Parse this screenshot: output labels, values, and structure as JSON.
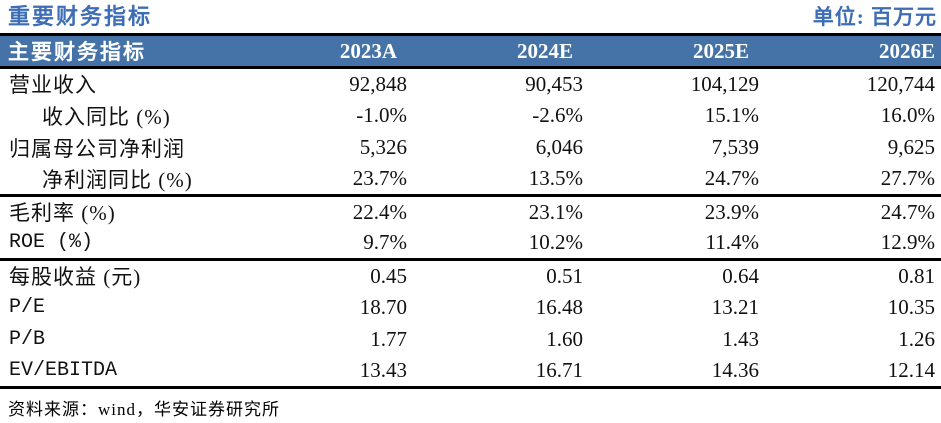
{
  "page": {
    "title": "重要财务指标",
    "unit_label": "单位: 百万元"
  },
  "colors": {
    "title_blue": "#3D6EB5",
    "header_bg": "#4573A7",
    "header_text": "#FFFFFF",
    "rule_black": "#000000"
  },
  "table": {
    "header": {
      "label": "主要财务指标",
      "columns": [
        "2023A",
        "2024E",
        "2025E",
        "2026E"
      ]
    },
    "groups": [
      {
        "rows": [
          {
            "label": "营业收入",
            "indent": false,
            "values": [
              "92,848",
              "90,453",
              "104,129",
              "120,744"
            ]
          },
          {
            "label": "收入同比 (%)",
            "indent": true,
            "values": [
              "-1.0%",
              "-2.6%",
              "15.1%",
              "16.0%"
            ]
          },
          {
            "label": "归属母公司净利润",
            "indent": false,
            "values": [
              "5,326",
              "6,046",
              "7,539",
              "9,625"
            ]
          },
          {
            "label": "净利润同比 (%)",
            "indent": true,
            "values": [
              "23.7%",
              "13.5%",
              "24.7%",
              "27.7%"
            ]
          }
        ]
      },
      {
        "rows": [
          {
            "label": "毛利率 (%)",
            "indent": false,
            "values": [
              "22.4%",
              "23.1%",
              "23.9%",
              "24.7%"
            ]
          },
          {
            "label": "ROE (%)",
            "indent": false,
            "values": [
              "9.7%",
              "10.2%",
              "11.4%",
              "12.9%"
            ]
          }
        ]
      },
      {
        "rows": [
          {
            "label": "每股收益 (元)",
            "indent": false,
            "values": [
              "0.45",
              "0.51",
              "0.64",
              "0.81"
            ]
          },
          {
            "label": "P/E",
            "indent": false,
            "values": [
              "18.70",
              "16.48",
              "13.21",
              "10.35"
            ]
          },
          {
            "label": "P/B",
            "indent": false,
            "values": [
              "1.77",
              "1.60",
              "1.43",
              "1.26"
            ]
          },
          {
            "label": "EV/EBITDA",
            "indent": false,
            "values": [
              "13.43",
              "16.71",
              "14.36",
              "12.14"
            ]
          }
        ]
      }
    ]
  },
  "footer": {
    "source": "资料来源：wind，华安证券研究所"
  }
}
